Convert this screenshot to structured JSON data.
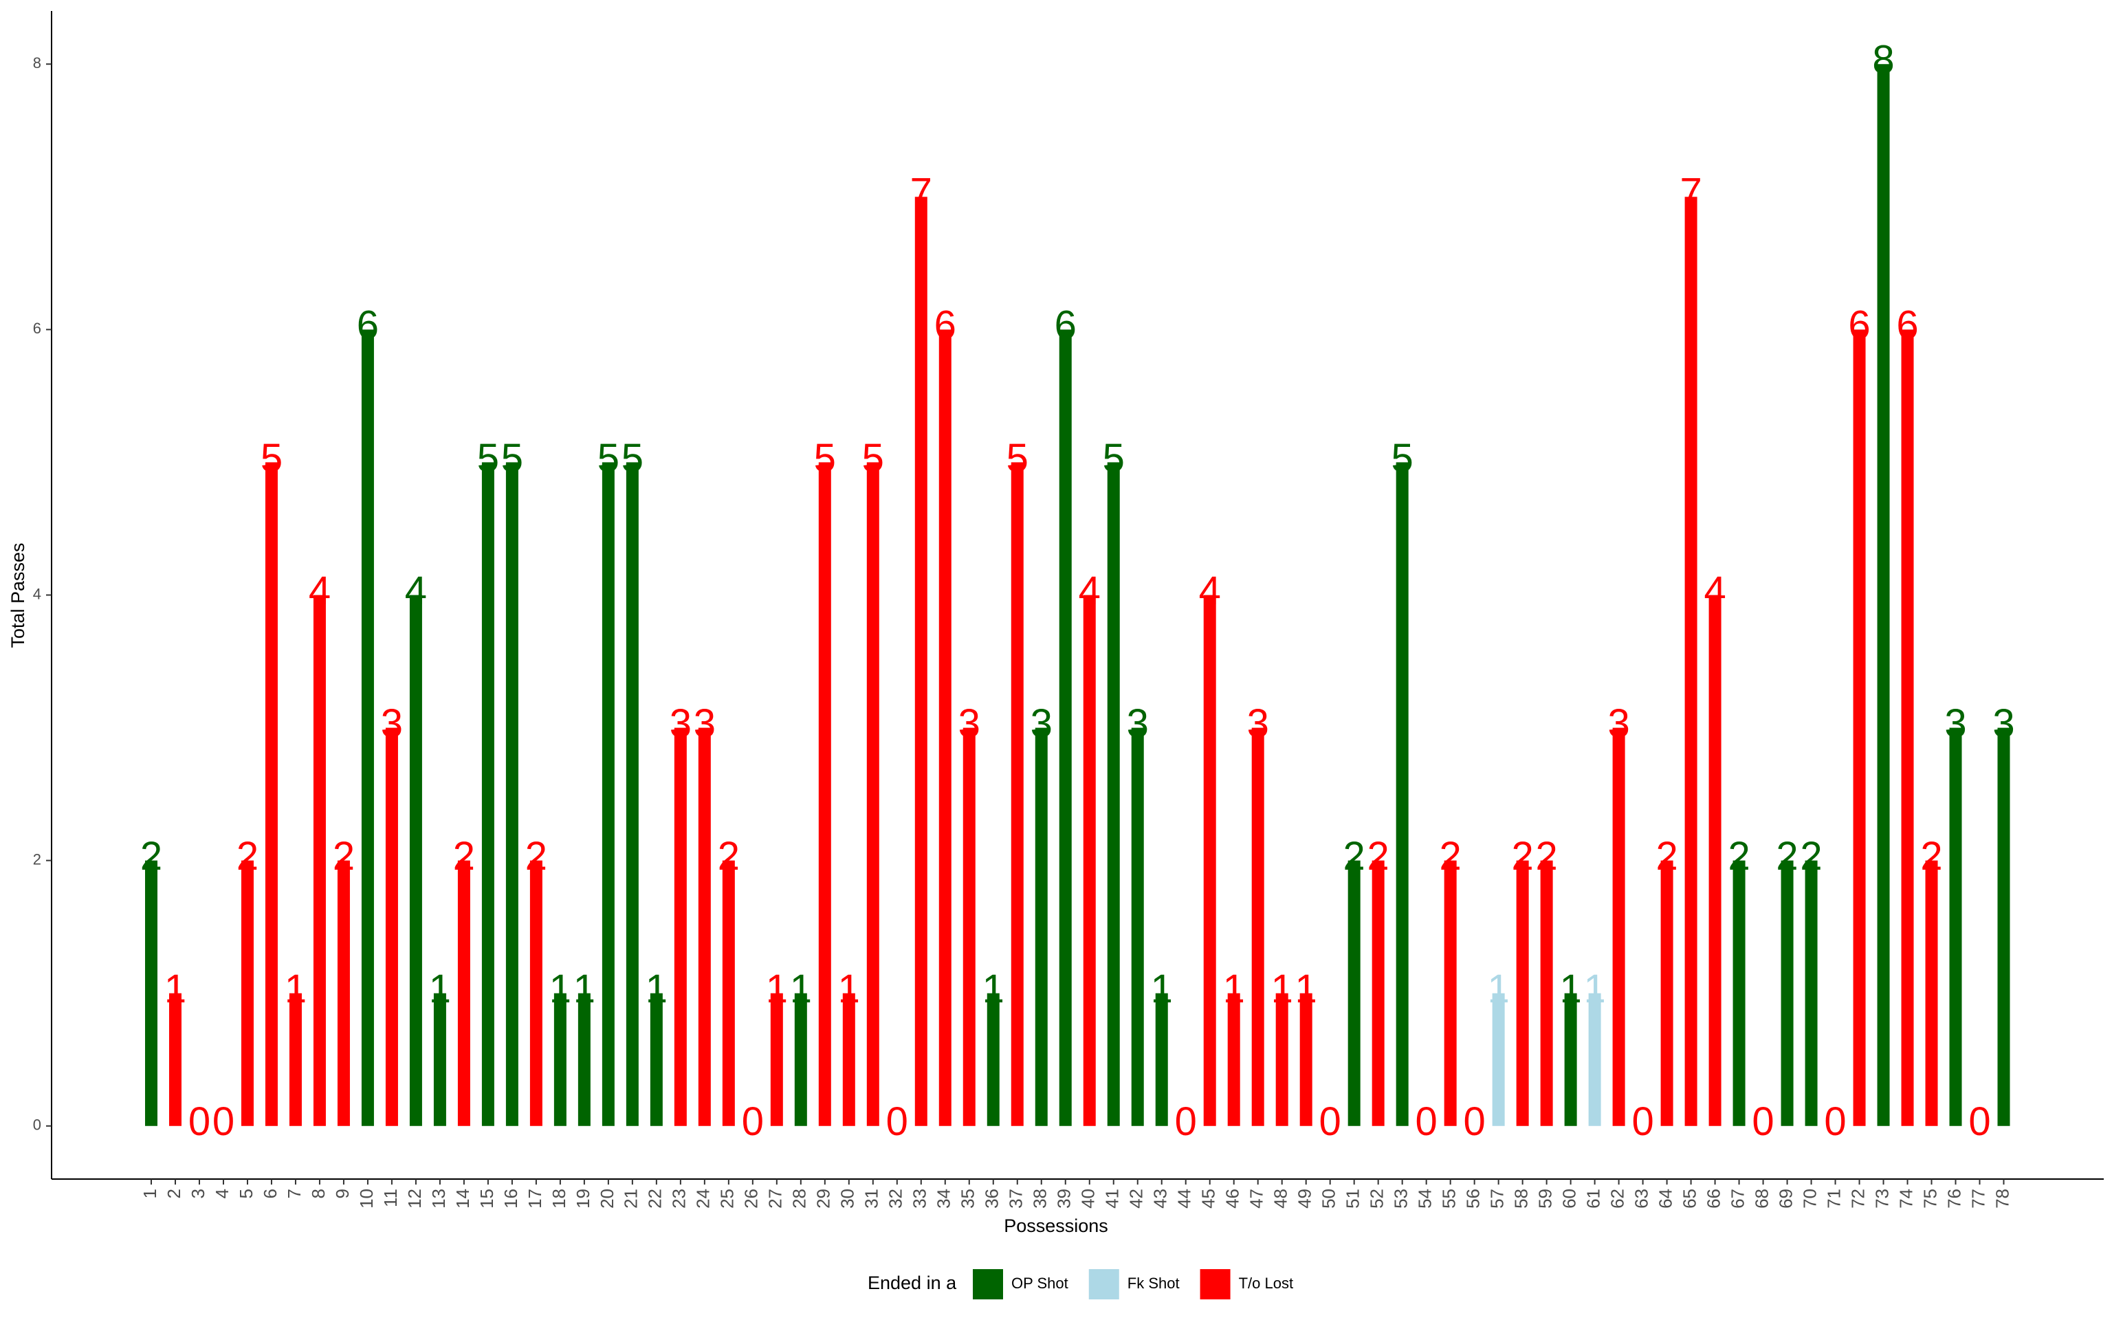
{
  "chart_data": {
    "type": "bar",
    "x_label": "Possessions",
    "y_label": "Total Passes",
    "legend_title": "Ended in a",
    "categories": [
      "1",
      "2",
      "3",
      "4",
      "5",
      "6",
      "7",
      "8",
      "9",
      "10",
      "11",
      "12",
      "13",
      "14",
      "15",
      "16",
      "17",
      "18",
      "19",
      "20",
      "21",
      "22",
      "23",
      "24",
      "25",
      "26",
      "27",
      "28",
      "29",
      "30",
      "31",
      "32",
      "33",
      "34",
      "35",
      "36",
      "37",
      "38",
      "39",
      "40",
      "41",
      "42",
      "43",
      "44",
      "45",
      "46",
      "47",
      "48",
      "49",
      "50",
      "51",
      "52",
      "53",
      "54",
      "55",
      "56",
      "57",
      "58",
      "59",
      "60",
      "61",
      "62",
      "63",
      "64",
      "65",
      "66",
      "67",
      "68",
      "69",
      "70",
      "71",
      "72",
      "73",
      "74",
      "75",
      "76",
      "77",
      "78"
    ],
    "series": [
      {
        "name": "OP Shot",
        "color": "#006400",
        "values": [
          2,
          null,
          null,
          null,
          null,
          null,
          null,
          null,
          null,
          6,
          null,
          4,
          1,
          null,
          5,
          5,
          null,
          1,
          1,
          5,
          5,
          1,
          null,
          null,
          null,
          null,
          null,
          1,
          null,
          null,
          null,
          null,
          null,
          null,
          null,
          1,
          null,
          3,
          6,
          null,
          5,
          3,
          1,
          null,
          null,
          null,
          null,
          null,
          null,
          null,
          2,
          null,
          5,
          null,
          null,
          null,
          null,
          null,
          null,
          1,
          null,
          null,
          null,
          null,
          null,
          null,
          2,
          null,
          2,
          2,
          null,
          null,
          8,
          null,
          null,
          3,
          null,
          3
        ]
      },
      {
        "name": "Fk Shot",
        "color": "#add8e6",
        "values": [
          null,
          null,
          null,
          null,
          null,
          null,
          null,
          null,
          null,
          null,
          null,
          null,
          null,
          null,
          null,
          null,
          null,
          null,
          null,
          null,
          null,
          null,
          null,
          null,
          null,
          null,
          null,
          null,
          null,
          null,
          null,
          null,
          null,
          null,
          null,
          null,
          null,
          null,
          null,
          null,
          null,
          null,
          null,
          null,
          null,
          null,
          null,
          null,
          null,
          null,
          null,
          null,
          null,
          null,
          null,
          null,
          1,
          null,
          null,
          null,
          1,
          null,
          null,
          null,
          null,
          null,
          null,
          null,
          null,
          null,
          null,
          null,
          null,
          null,
          null,
          null,
          null,
          null
        ]
      },
      {
        "name": "T/o Lost",
        "color": "#ff0000",
        "values": [
          null,
          1,
          0,
          0,
          2,
          5,
          1,
          4,
          2,
          null,
          3,
          null,
          null,
          2,
          null,
          null,
          2,
          null,
          null,
          null,
          null,
          null,
          3,
          3,
          2,
          0,
          1,
          null,
          5,
          1,
          5,
          0,
          7,
          6,
          3,
          null,
          5,
          null,
          null,
          4,
          null,
          null,
          null,
          0,
          4,
          1,
          3,
          1,
          1,
          0,
          null,
          2,
          null,
          0,
          2,
          0,
          null,
          2,
          2,
          null,
          null,
          3,
          0,
          2,
          7,
          4,
          null,
          0,
          null,
          null,
          0,
          6,
          null,
          6,
          2,
          null,
          0,
          null
        ]
      }
    ],
    "ylim": [
      -0.4,
      8.4
    ],
    "yticks": [
      0,
      2,
      4,
      6,
      8
    ],
    "grid": false
  }
}
